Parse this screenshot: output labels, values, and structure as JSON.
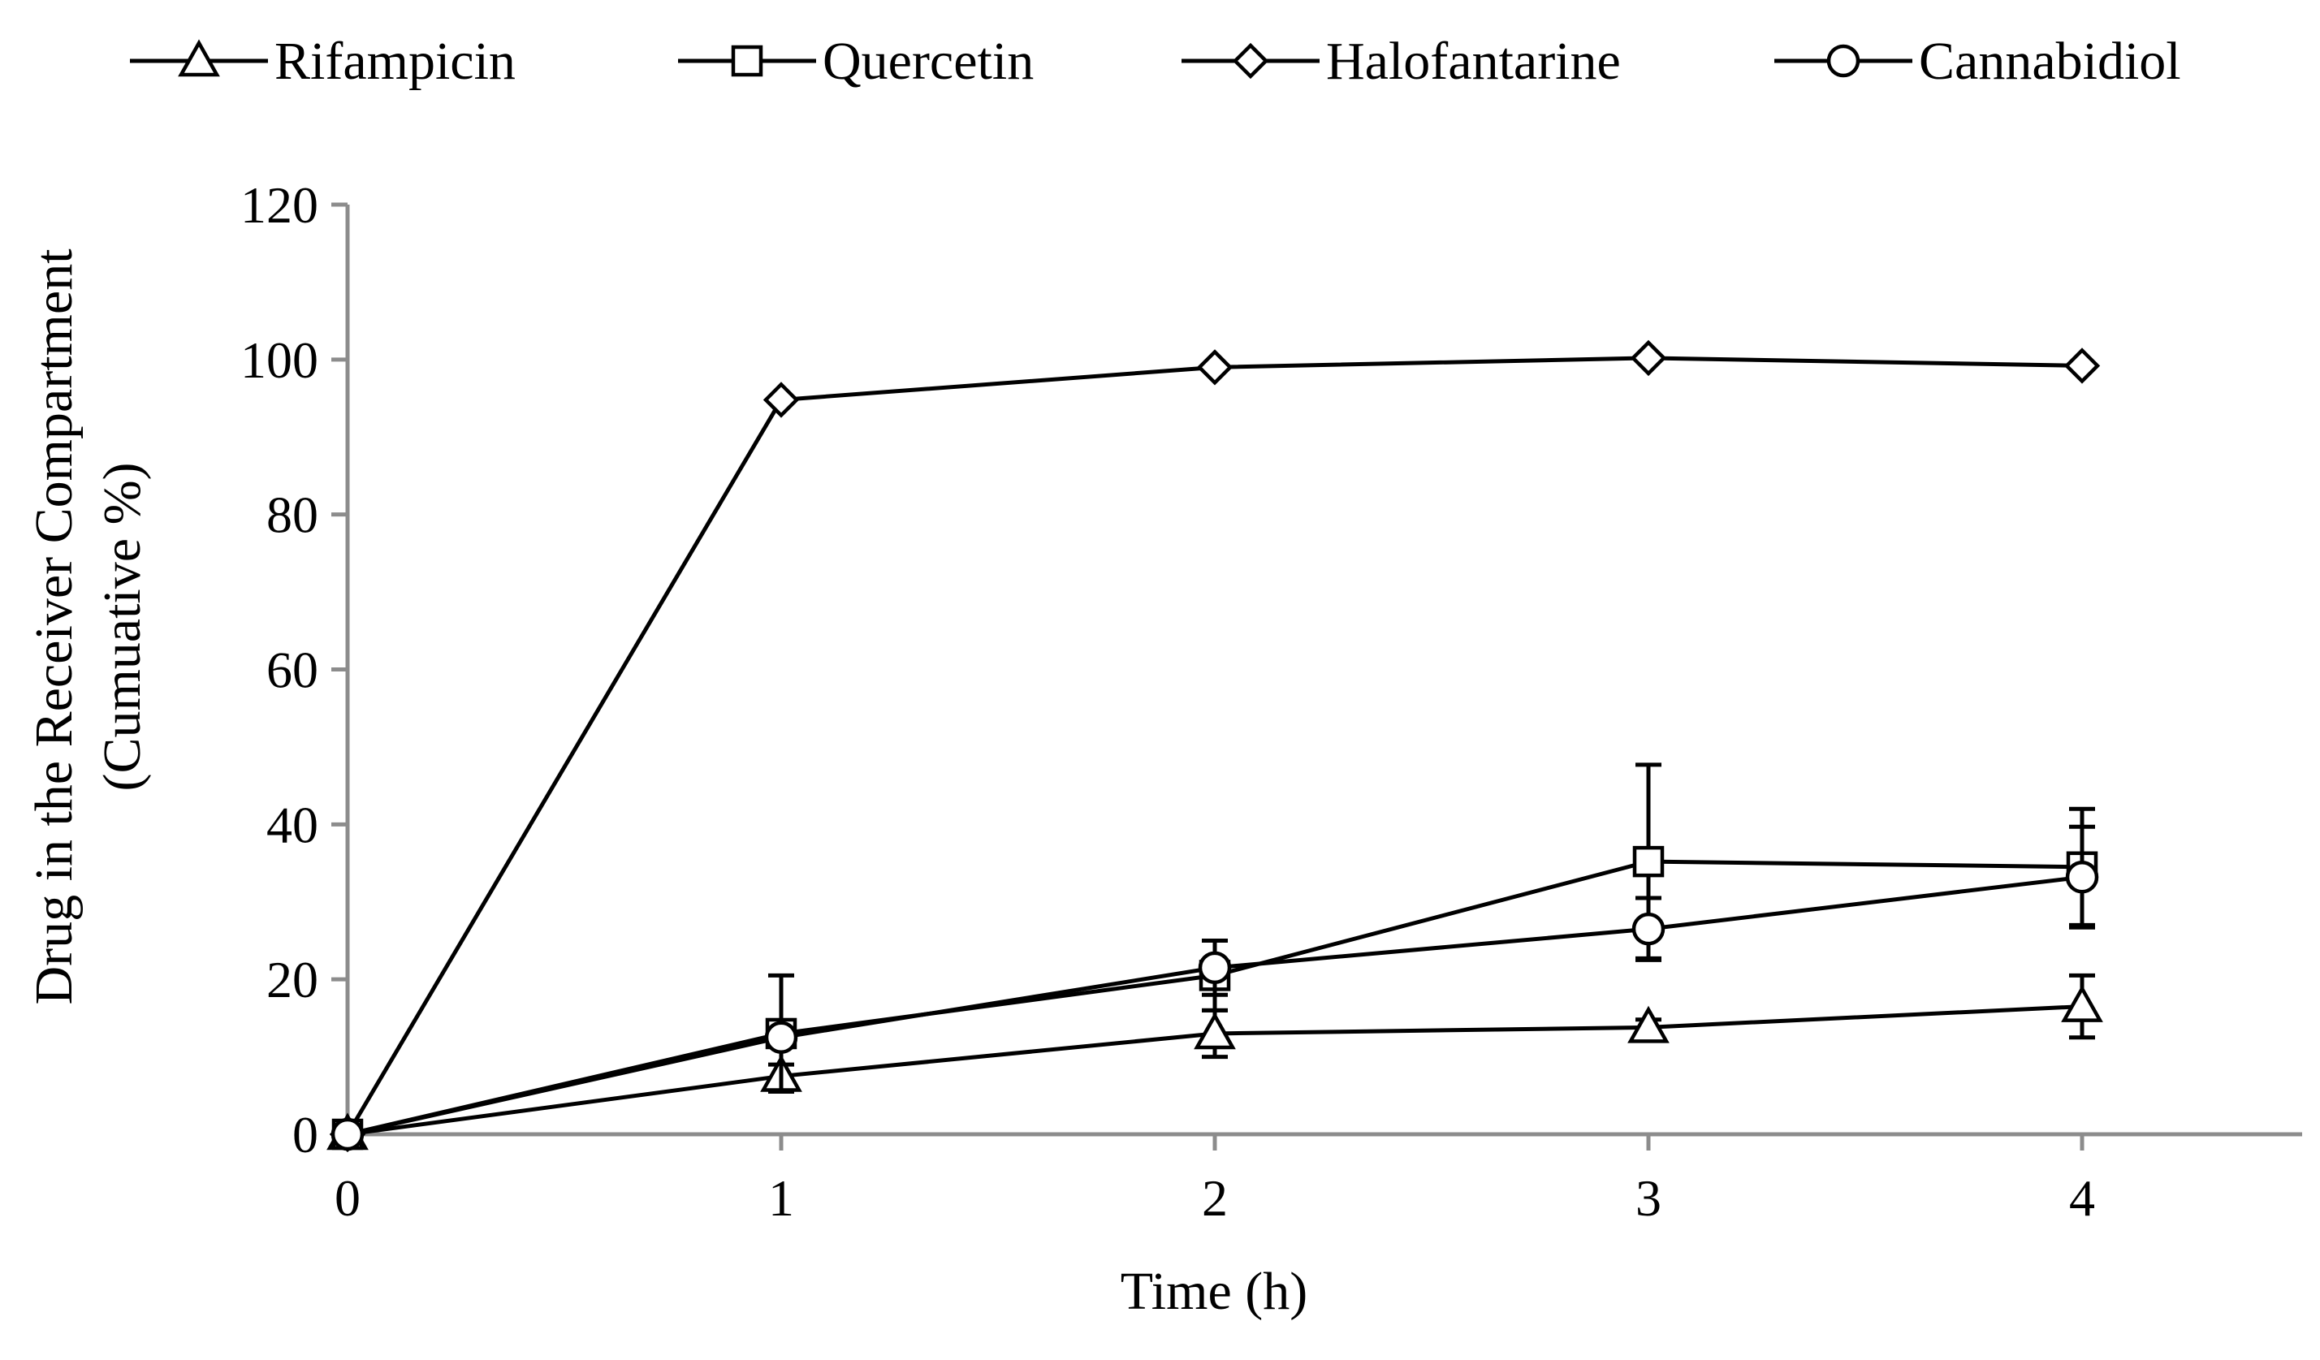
{
  "chart_data": {
    "type": "line",
    "title": "",
    "xlabel": "Time (h)",
    "ylabel_lines": [
      "Drug in the Receiver Compartment",
      "(Cumuative %)"
    ],
    "x": [
      0,
      1,
      2,
      3,
      4
    ],
    "xlim": [
      0,
      4.5
    ],
    "ylim": [
      0,
      120
    ],
    "x_ticks": [
      0,
      1,
      2,
      3,
      4
    ],
    "y_ticks": [
      0,
      20,
      40,
      60,
      80,
      100,
      120
    ],
    "grid": false,
    "legend_position": "top",
    "axis_color": "#8c8c8c",
    "line_color": "#000000",
    "series": [
      {
        "name": "Rifampicin",
        "marker": "triangle",
        "values": [
          0,
          7.5,
          13,
          13.8,
          16.5
        ],
        "errors": [
          0,
          1.5,
          3,
          1,
          4
        ]
      },
      {
        "name": "Quercetin",
        "marker": "square",
        "values": [
          0,
          13,
          20.5,
          35.2,
          34.5
        ],
        "errors": [
          0,
          7.5,
          4.5,
          12.5,
          7.5
        ]
      },
      {
        "name": "Halofantarine",
        "marker": "diamond",
        "values": [
          0,
          94.8,
          99,
          100.2,
          99.2
        ],
        "errors": [
          0,
          0,
          0,
          0,
          0
        ]
      },
      {
        "name": "Cannabidiol",
        "marker": "circle",
        "values": [
          0,
          12.5,
          21.5,
          26.5,
          33.2
        ],
        "errors": [
          0,
          0,
          3.5,
          4,
          6.5
        ]
      }
    ]
  }
}
